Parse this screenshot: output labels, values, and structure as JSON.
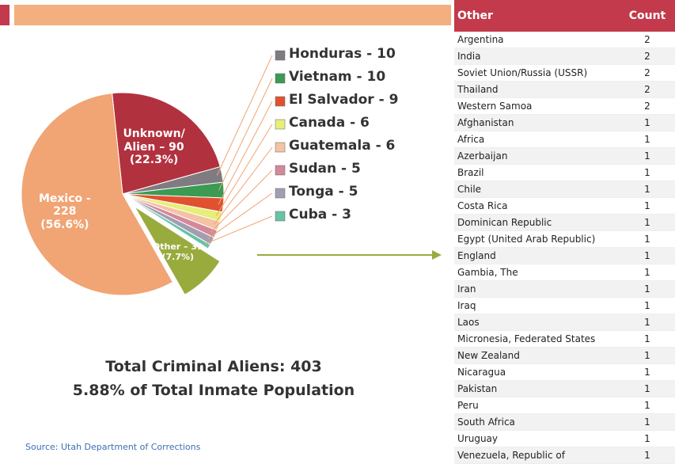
{
  "chart_data": {
    "type": "pie",
    "categories": [
      "Unknown/Alien",
      "Honduras",
      "Vietnam",
      "El Salvador",
      "Canada",
      "Guatemala",
      "Sudan",
      "Tonga",
      "Cuba",
      "Other",
      "Mexico"
    ],
    "values": [
      90,
      10,
      10,
      9,
      6,
      6,
      5,
      5,
      3,
      31,
      228
    ],
    "value_labels": [
      "Unknown/ Alien – 90 (22.3%)",
      "Honduras - 10",
      "Vietnam - 10",
      "El Salvador - 9",
      "Canada - 6",
      "Guatemala - 6",
      "Sudan - 5",
      "Tonga - 5",
      "Cuba - 3",
      "Other – 31 (7.7%)",
      "Mexico - 228 (56.6%)"
    ],
    "colors": [
      "#b2313f",
      "#7f7b80",
      "#3c9a52",
      "#e0522f",
      "#e6ef78",
      "#f4c2a4",
      "#d4889a",
      "#a49daf",
      "#66c3a6",
      "#9aab3e",
      "#f1a474"
    ],
    "annotations": [
      "Total Criminal Aliens: 403",
      "5.88% of Total Inmate Population"
    ],
    "source": "Source: Utah Department of Corrections"
  },
  "table": {
    "header": [
      "Other",
      "Count"
    ],
    "rows": [
      [
        "Argentina",
        2
      ],
      [
        "India",
        2
      ],
      [
        "Soviet Union/Russia (USSR)",
        2
      ],
      [
        "Thailand",
        2
      ],
      [
        "Western Samoa",
        2
      ],
      [
        "Afghanistan",
        1
      ],
      [
        "Africa",
        1
      ],
      [
        "Azerbaijan",
        1
      ],
      [
        "Brazil",
        1
      ],
      [
        "Chile",
        1
      ],
      [
        "Costa Rica",
        1
      ],
      [
        "Dominican Republic",
        1
      ],
      [
        "Egypt (United Arab Republic)",
        1
      ],
      [
        "England",
        1
      ],
      [
        "Gambia, The",
        1
      ],
      [
        "Iran",
        1
      ],
      [
        "Iraq",
        1
      ],
      [
        "Laos",
        1
      ],
      [
        "Micronesia, Federated States",
        1
      ],
      [
        "New Zealand",
        1
      ],
      [
        "Nicaragua",
        1
      ],
      [
        "Pakistan",
        1
      ],
      [
        "Peru",
        1
      ],
      [
        "South Africa",
        1
      ],
      [
        "Uruguay",
        1
      ],
      [
        "Venezuela, Republic of",
        1
      ]
    ]
  }
}
